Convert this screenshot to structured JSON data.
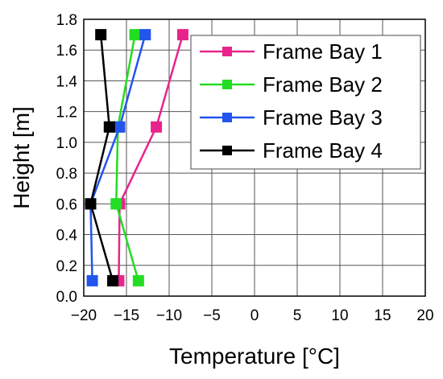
{
  "chart_data": {
    "type": "line",
    "xlabel": "Temperature [°C]",
    "ylabel": "Height [m]",
    "xlim": [
      -20,
      20
    ],
    "ylim": [
      0.0,
      1.8
    ],
    "xticks": [
      -20,
      -15,
      -10,
      -5,
      0,
      5,
      10,
      15,
      20
    ],
    "xtick_labels": [
      "−20",
      "−15",
      "−10",
      "−5",
      "0",
      "5",
      "10",
      "15",
      "20"
    ],
    "yticks": [
      0.0,
      0.2,
      0.4,
      0.6,
      0.8,
      1.0,
      1.2,
      1.4,
      1.6,
      1.8
    ],
    "ytick_labels": [
      "0.0",
      "0.2",
      "0.4",
      "0.6",
      "0.8",
      "1.0",
      "1.2",
      "1.4",
      "1.6",
      "1.8"
    ],
    "grid": true,
    "legend_position": "top-right",
    "series": [
      {
        "name": "Frame Bay 1",
        "color": "#e8248c",
        "marker": "square",
        "points": [
          [
            -15.9,
            0.1
          ],
          [
            -15.8,
            0.6
          ],
          [
            -11.5,
            1.1
          ],
          [
            -8.4,
            1.7
          ]
        ]
      },
      {
        "name": "Frame Bay 2",
        "color": "#22dd22",
        "marker": "square",
        "points": [
          [
            -13.6,
            0.1
          ],
          [
            -16.2,
            0.6
          ],
          [
            -16.0,
            1.1
          ],
          [
            -14.0,
            1.7
          ]
        ]
      },
      {
        "name": "Frame Bay 3",
        "color": "#2255ee",
        "marker": "square",
        "points": [
          [
            -19.0,
            0.1
          ],
          [
            -19.2,
            0.6
          ],
          [
            -15.8,
            1.1
          ],
          [
            -12.8,
            1.7
          ]
        ]
      },
      {
        "name": "Frame Bay 4",
        "color": "#000000",
        "marker": "square",
        "points": [
          [
            -16.6,
            0.1
          ],
          [
            -19.2,
            0.6
          ],
          [
            -17.0,
            1.1
          ],
          [
            -18.0,
            1.7
          ]
        ]
      }
    ]
  }
}
